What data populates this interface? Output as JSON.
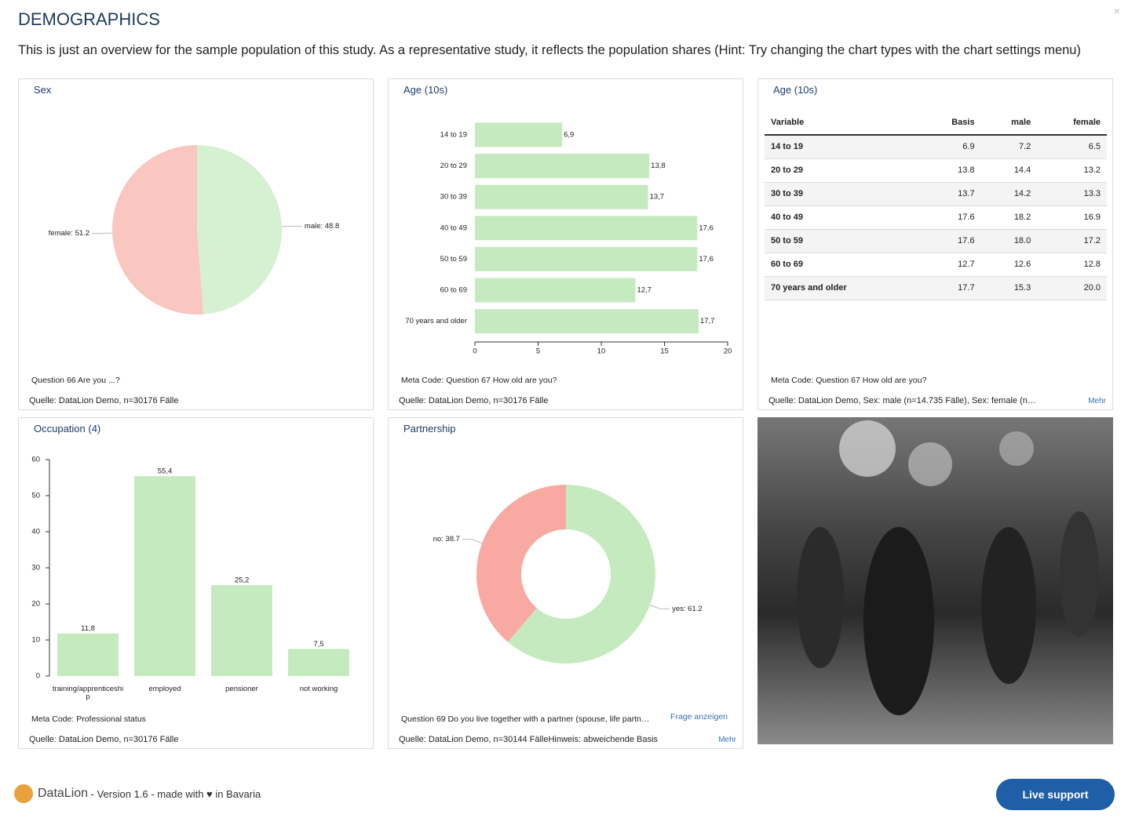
{
  "header": {
    "title": "DEMOGRAPHICS",
    "intro": "This is just an overview for the sample population of this study. As a representative study, it reflects the population shares (Hint: Try changing the chart types with the chart settings menu)",
    "close": "×"
  },
  "chart_data": [
    {
      "type": "pie",
      "title": "Sex",
      "values": [
        51.2,
        48.8
      ],
      "value_labels": [
        "female: 51.2",
        "male: 48.8"
      ],
      "colors": [
        "#f9c6c0",
        "#d6f0d2"
      ],
      "question": "Question 66 Are you ...?",
      "source": "Quelle: DataLion Demo, n=30176 Fälle"
    },
    {
      "type": "hbar",
      "title": "Age (10s)",
      "categories": [
        "14 to 19",
        "20 to 29",
        "30 to 39",
        "40 to 49",
        "50 to 59",
        "60 to 69",
        "70 years and older"
      ],
      "values": [
        6.9,
        13.8,
        13.7,
        17.6,
        17.6,
        12.7,
        17.7
      ],
      "value_labels": [
        "6,9",
        "13,8",
        "13,7",
        "17,6",
        "17,6",
        "12,7",
        "17,7"
      ],
      "color": "#c6eabf",
      "xlim": [
        0,
        20
      ],
      "xticks": [
        0,
        5,
        10,
        15,
        20
      ],
      "question": "Meta Code: Question 67 How old are you?",
      "source": "Quelle: DataLion Demo, n=30176 Fälle"
    },
    {
      "type": "bar",
      "title": "Occupation (4)",
      "categories": [
        "training/apprenticeship",
        "employed",
        "pensioner",
        "not working"
      ],
      "values": [
        11.8,
        55.4,
        25.2,
        7.5
      ],
      "value_labels": [
        "11,8",
        "55,4",
        "25,2",
        "7,5"
      ],
      "color": "#c6eabf",
      "ylim": [
        0,
        60
      ],
      "yticks": [
        0,
        10,
        20,
        30,
        40,
        50,
        60
      ],
      "question": "Meta Code: Professional status",
      "source": "Quelle: DataLion Demo, n=30176 Fälle"
    },
    {
      "type": "donut",
      "title": "Partnership",
      "values": [
        38.7,
        61.2
      ],
      "value_labels": [
        "no: 38.7",
        "yes: 61.2"
      ],
      "colors": [
        "#f8aaa2",
        "#c6eabf"
      ],
      "question": "Question 69 Do you live together with a partner (spouse, life partn…",
      "link": "Frage anzeigen",
      "source": "Quelle: DataLion Demo, n=30144 FälleHinweis: abweichende Basis",
      "more": "Mehr"
    }
  ],
  "table_panel": {
    "title": "Age (10s)",
    "columns": [
      "Variable",
      "Basis",
      "male",
      "female"
    ],
    "rows": [
      [
        "14 to 19",
        "6.9",
        "7.2",
        "6.5"
      ],
      [
        "20 to 29",
        "13.8",
        "14.4",
        "13.2"
      ],
      [
        "30 to 39",
        "13.7",
        "14.2",
        "13.3"
      ],
      [
        "40 to 49",
        "17.6",
        "18.2",
        "16.9"
      ],
      [
        "50 to 59",
        "17.6",
        "18.0",
        "17.2"
      ],
      [
        "60 to 69",
        "12.7",
        "12.6",
        "12.8"
      ],
      [
        "70 years and older",
        "17.7",
        "15.3",
        "20.0"
      ]
    ],
    "question": "Meta Code: Question 67 How old are you?",
    "source": "Quelle: DataLion Demo, Sex: male (n=14.735 Fälle), Sex: female (n…",
    "more": "Mehr"
  },
  "footer": {
    "brand": "DataLion",
    "version": " - Version 1.6 - made with ♥ in Bavaria",
    "support": "Live support"
  }
}
